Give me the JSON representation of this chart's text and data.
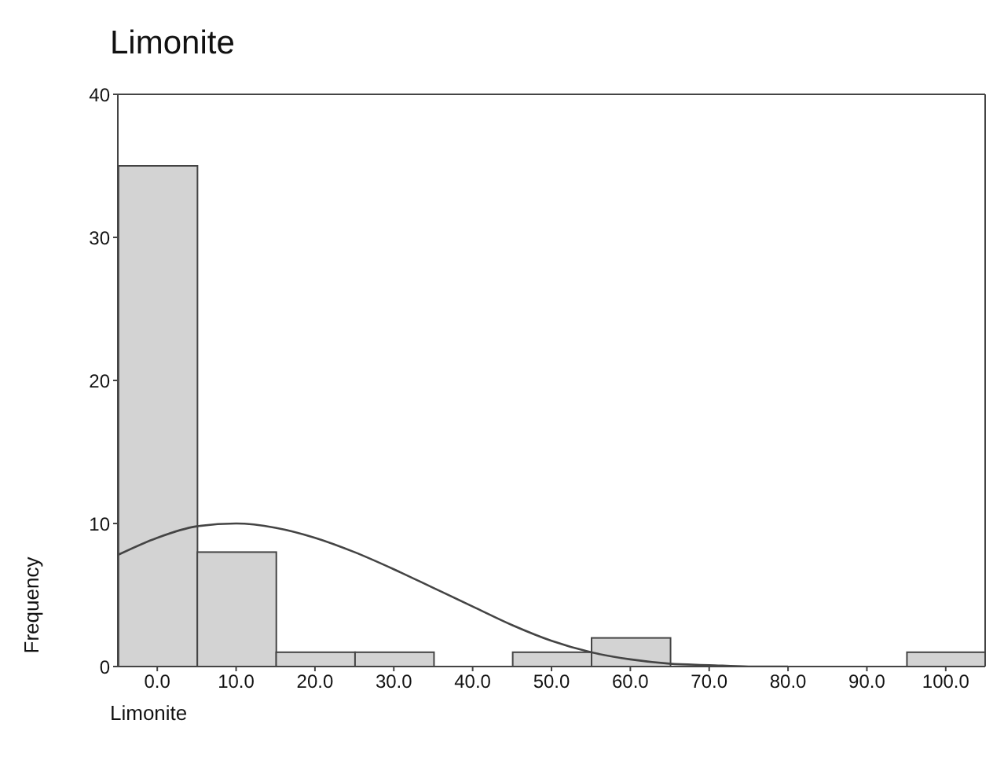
{
  "chart_data": {
    "type": "histogram",
    "title": "Limonite",
    "xlabel": "Limonite",
    "ylabel": "Frequency",
    "bins": [
      -5,
      5,
      15,
      25,
      35,
      45,
      55,
      65,
      75,
      85,
      95,
      105
    ],
    "series": [
      {
        "color": "#d3d3d3",
        "values": [
          35,
          8,
          1,
          1,
          0,
          1,
          2,
          0,
          0,
          0,
          1
        ]
      },
      {
        "type": "line",
        "color": "#444444",
        "x": [
          -5,
          0,
          5,
          10,
          15,
          20,
          25,
          30,
          35,
          40,
          45,
          50,
          55,
          60,
          65,
          70,
          75,
          80
        ],
        "values": [
          7.8,
          9.0,
          9.8,
          10,
          9.7,
          9,
          8,
          6.8,
          5.5,
          4.2,
          2.9,
          1.8,
          1.0,
          0.5,
          0.2,
          0.1,
          0,
          0
        ]
      }
    ],
    "xlim": [
      -5,
      105
    ],
    "xticks": [
      {
        "value": 0,
        "label": "0.0"
      },
      {
        "value": 10,
        "label": "10.0"
      },
      {
        "value": 20,
        "label": "20.0"
      },
      {
        "value": 30,
        "label": "30.0"
      },
      {
        "value": 40,
        "label": "40.0"
      },
      {
        "value": 50,
        "label": "50.0"
      },
      {
        "value": 60,
        "label": "60.0"
      },
      {
        "value": 70,
        "label": "70.0"
      },
      {
        "value": 80,
        "label": "80.0"
      },
      {
        "value": 90,
        "label": "90.0"
      },
      {
        "value": 100,
        "label": "100.0"
      }
    ],
    "ylim": [
      0,
      40
    ],
    "yticks": [
      0,
      10,
      20,
      30,
      40
    ],
    "grid": false,
    "legend": false
  }
}
